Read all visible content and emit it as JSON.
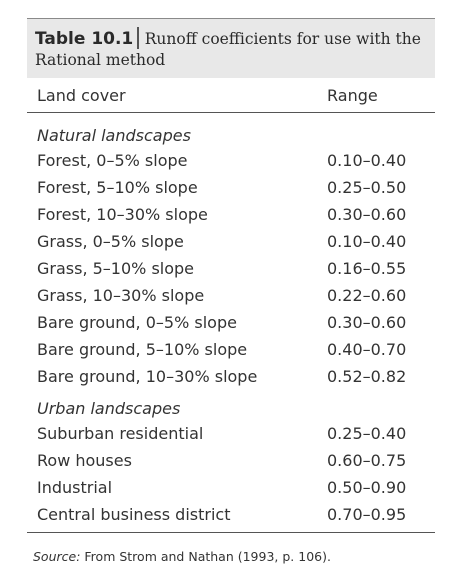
{
  "caption": {
    "number": "Table 10.1",
    "title_line1": "Runoff coefficients for use with the",
    "title_line2": "Rational method"
  },
  "columns": {
    "land_cover": "Land cover",
    "range": "Range"
  },
  "groups": [
    {
      "heading": "Natural landscapes",
      "rows": [
        {
          "label": "Forest, 0–5% slope",
          "range": "0.10–0.40"
        },
        {
          "label": "Forest, 5–10% slope",
          "range": "0.25–0.50"
        },
        {
          "label": "Forest, 10–30% slope",
          "range": "0.30–0.60"
        },
        {
          "label": "Grass, 0–5% slope",
          "range": "0.10–0.40"
        },
        {
          "label": "Grass, 5–10% slope",
          "range": "0.16–0.55"
        },
        {
          "label": "Grass, 10–30% slope",
          "range": "0.22–0.60"
        },
        {
          "label": "Bare ground, 0–5% slope",
          "range": "0.30–0.60"
        },
        {
          "label": "Bare ground, 5–10% slope",
          "range": "0.40–0.70"
        },
        {
          "label": "Bare ground, 10–30% slope",
          "range": "0.52–0.82"
        }
      ]
    },
    {
      "heading": "Urban landscapes",
      "rows": [
        {
          "label": "Suburban residential",
          "range": "0.25–0.40"
        },
        {
          "label": "Row houses",
          "range": "0.60–0.75"
        },
        {
          "label": "Industrial",
          "range": "0.50–0.90"
        },
        {
          "label": "Central business district",
          "range": "0.70–0.95"
        }
      ]
    }
  ],
  "source": {
    "label": "Source:",
    "text": "From Strom and Nathan (1993, p. 106)."
  },
  "colors": {
    "caption_background": "#e8e8e8",
    "text": "#333333",
    "rule": "#555555"
  }
}
